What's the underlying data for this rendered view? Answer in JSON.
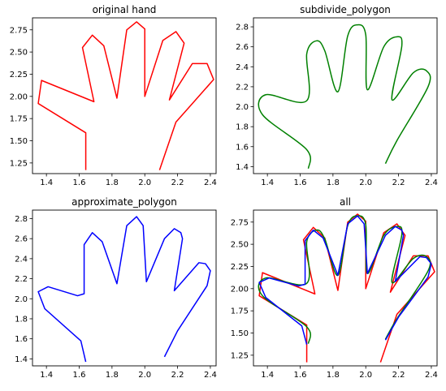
{
  "chart_data": [
    {
      "type": "line",
      "title": "original hand",
      "xlim": [
        1.315,
        2.435
      ],
      "ylim": [
        1.13,
        2.885
      ],
      "xticks": [
        1.4,
        1.6,
        1.8,
        2.0,
        2.2,
        2.4
      ],
      "yticks": [
        1.25,
        1.5,
        1.75,
        2.0,
        2.25,
        2.5,
        2.75
      ],
      "yformat": 2,
      "series": [
        {
          "color": "#ff0000",
          "style": "poly",
          "points": [
            [
              1.64,
              1.17
            ],
            [
              1.64,
              1.59
            ],
            [
              1.35,
              1.92
            ],
            [
              1.37,
              2.18
            ],
            [
              1.69,
              1.94
            ],
            [
              1.62,
              2.55
            ],
            [
              1.68,
              2.69
            ],
            [
              1.75,
              2.57
            ],
            [
              1.83,
              1.98
            ],
            [
              1.89,
              2.75
            ],
            [
              1.95,
              2.84
            ],
            [
              2.0,
              2.76
            ],
            [
              2.0,
              2.0
            ],
            [
              2.11,
              2.63
            ],
            [
              2.19,
              2.73
            ],
            [
              2.24,
              2.6
            ],
            [
              2.15,
              1.96
            ],
            [
              2.29,
              2.37
            ],
            [
              2.38,
              2.37
            ],
            [
              2.42,
              2.19
            ],
            [
              2.19,
              1.71
            ],
            [
              2.09,
              1.17
            ]
          ]
        }
      ]
    },
    {
      "type": "line",
      "title": "subdivide_polygon",
      "xlim": [
        1.315,
        2.435
      ],
      "ylim": [
        1.33,
        2.89
      ],
      "xticks": [
        1.4,
        1.6,
        1.8,
        2.0,
        2.2,
        2.4
      ],
      "yticks": [
        1.4,
        1.6,
        1.8,
        2.0,
        2.2,
        2.4,
        2.6,
        2.8
      ],
      "yformat": 1,
      "series": [
        {
          "color": "#008000",
          "style": "smooth",
          "points": [
            [
              1.65,
              1.38
            ],
            [
              1.64,
              1.57
            ],
            [
              1.37,
              1.92
            ],
            [
              1.39,
              2.12
            ],
            [
              1.64,
              2.06
            ],
            [
              1.64,
              2.53
            ],
            [
              1.7,
              2.66
            ],
            [
              1.75,
              2.56
            ],
            [
              1.83,
              2.15
            ],
            [
              1.89,
              2.71
            ],
            [
              1.95,
              2.82
            ],
            [
              2.0,
              2.72
            ],
            [
              2.01,
              2.17
            ],
            [
              2.11,
              2.6
            ],
            [
              2.19,
              2.7
            ],
            [
              2.22,
              2.61
            ],
            [
              2.16,
              2.07
            ],
            [
              2.29,
              2.34
            ],
            [
              2.37,
              2.36
            ],
            [
              2.38,
              2.2
            ],
            [
              2.19,
              1.66
            ],
            [
              2.12,
              1.43
            ]
          ]
        }
      ]
    },
    {
      "type": "line",
      "title": "approximate_polygon",
      "xlim": [
        1.315,
        2.435
      ],
      "ylim": [
        1.33,
        2.885
      ],
      "xticks": [
        1.4,
        1.6,
        1.8,
        2.0,
        2.2,
        2.4
      ],
      "yticks": [
        1.4,
        1.6,
        1.8,
        2.0,
        2.2,
        2.4,
        2.6,
        2.8
      ],
      "yformat": 1,
      "series": [
        {
          "color": "#0000ff",
          "style": "poly",
          "points": [
            [
              1.64,
              1.37
            ],
            [
              1.61,
              1.58
            ],
            [
              1.39,
              1.9
            ],
            [
              1.35,
              2.07
            ],
            [
              1.41,
              2.12
            ],
            [
              1.59,
              2.03
            ],
            [
              1.63,
              2.05
            ],
            [
              1.63,
              2.54
            ],
            [
              1.68,
              2.66
            ],
            [
              1.74,
              2.57
            ],
            [
              1.83,
              2.15
            ],
            [
              1.89,
              2.73
            ],
            [
              1.95,
              2.82
            ],
            [
              1.99,
              2.73
            ],
            [
              2.01,
              2.17
            ],
            [
              2.12,
              2.6
            ],
            [
              2.18,
              2.7
            ],
            [
              2.22,
              2.66
            ],
            [
              2.23,
              2.6
            ],
            [
              2.18,
              2.08
            ],
            [
              2.33,
              2.36
            ],
            [
              2.37,
              2.35
            ],
            [
              2.4,
              2.28
            ],
            [
              2.38,
              2.13
            ],
            [
              2.2,
              1.68
            ],
            [
              2.12,
              1.42
            ]
          ]
        }
      ]
    },
    {
      "type": "line",
      "title": "all",
      "xlim": [
        1.315,
        2.435
      ],
      "ylim": [
        1.13,
        2.885
      ],
      "xticks": [
        1.4,
        1.6,
        1.8,
        2.0,
        2.2,
        2.4
      ],
      "yticks": [
        1.25,
        1.5,
        1.75,
        2.0,
        2.25,
        2.5,
        2.75
      ],
      "yformat": 2,
      "series": [
        {
          "color": "#ff0000",
          "style": "poly",
          "points": [
            [
              1.64,
              1.17
            ],
            [
              1.64,
              1.59
            ],
            [
              1.35,
              1.92
            ],
            [
              1.37,
              2.18
            ],
            [
              1.69,
              1.94
            ],
            [
              1.62,
              2.55
            ],
            [
              1.68,
              2.69
            ],
            [
              1.75,
              2.57
            ],
            [
              1.83,
              1.98
            ],
            [
              1.89,
              2.75
            ],
            [
              1.95,
              2.84
            ],
            [
              2.0,
              2.76
            ],
            [
              2.0,
              2.0
            ],
            [
              2.11,
              2.63
            ],
            [
              2.19,
              2.73
            ],
            [
              2.24,
              2.6
            ],
            [
              2.15,
              1.96
            ],
            [
              2.29,
              2.37
            ],
            [
              2.38,
              2.37
            ],
            [
              2.42,
              2.19
            ],
            [
              2.19,
              1.71
            ],
            [
              2.09,
              1.17
            ]
          ]
        },
        {
          "color": "#008000",
          "style": "smooth",
          "points": [
            [
              1.65,
              1.38
            ],
            [
              1.64,
              1.57
            ],
            [
              1.37,
              1.92
            ],
            [
              1.39,
              2.12
            ],
            [
              1.64,
              2.06
            ],
            [
              1.64,
              2.53
            ],
            [
              1.7,
              2.66
            ],
            [
              1.75,
              2.56
            ],
            [
              1.83,
              2.15
            ],
            [
              1.89,
              2.71
            ],
            [
              1.95,
              2.82
            ],
            [
              2.0,
              2.72
            ],
            [
              2.01,
              2.17
            ],
            [
              2.11,
              2.6
            ],
            [
              2.19,
              2.7
            ],
            [
              2.22,
              2.61
            ],
            [
              2.16,
              2.07
            ],
            [
              2.29,
              2.34
            ],
            [
              2.37,
              2.36
            ],
            [
              2.38,
              2.2
            ],
            [
              2.19,
              1.66
            ],
            [
              2.12,
              1.43
            ]
          ]
        },
        {
          "color": "#0000ff",
          "style": "poly",
          "points": [
            [
              1.64,
              1.37
            ],
            [
              1.61,
              1.58
            ],
            [
              1.39,
              1.9
            ],
            [
              1.35,
              2.07
            ],
            [
              1.41,
              2.12
            ],
            [
              1.59,
              2.03
            ],
            [
              1.63,
              2.05
            ],
            [
              1.63,
              2.54
            ],
            [
              1.68,
              2.66
            ],
            [
              1.74,
              2.57
            ],
            [
              1.83,
              2.15
            ],
            [
              1.89,
              2.73
            ],
            [
              1.95,
              2.82
            ],
            [
              1.99,
              2.73
            ],
            [
              2.01,
              2.17
            ],
            [
              2.12,
              2.6
            ],
            [
              2.18,
              2.7
            ],
            [
              2.22,
              2.66
            ],
            [
              2.23,
              2.6
            ],
            [
              2.18,
              2.08
            ],
            [
              2.33,
              2.36
            ],
            [
              2.37,
              2.35
            ],
            [
              2.4,
              2.28
            ],
            [
              2.38,
              2.13
            ],
            [
              2.2,
              1.68
            ],
            [
              2.12,
              1.42
            ]
          ]
        }
      ]
    }
  ]
}
